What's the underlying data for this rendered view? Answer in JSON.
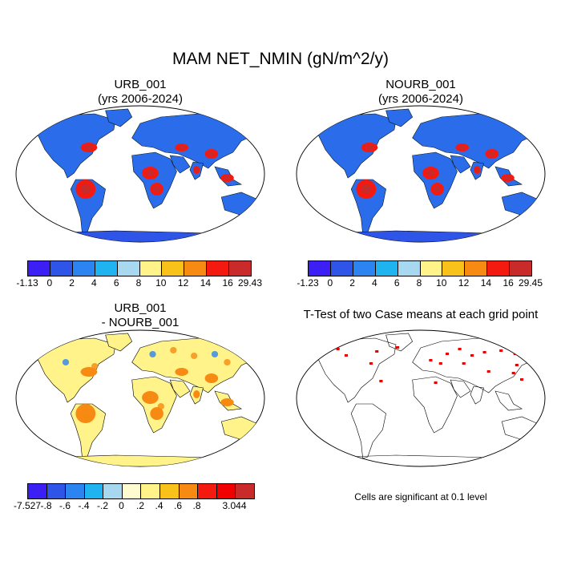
{
  "figure_title": "MAM NET_NMIN (gN/m^2/y)",
  "panels": [
    {
      "title_line1": "URB_001",
      "title_line2": "(yrs 2006-2024)",
      "colorbar": {
        "colors": [
          "#3b1ff5",
          "#2f55e8",
          "#2b84f0",
          "#1fb3f0",
          "#a8d8f0",
          "#fff38a",
          "#f9c21a",
          "#f68a12",
          "#f51a10",
          "#c92a2a"
        ],
        "labels": [
          "-1.13",
          "0",
          "2",
          "4",
          "6",
          "8",
          "10",
          "12",
          "14",
          "16",
          "29.43"
        ]
      }
    },
    {
      "title_line1": "NOURB_001",
      "title_line2": "(yrs 2006-2024)",
      "colorbar": {
        "colors": [
          "#3b1ff5",
          "#2f55e8",
          "#2b84f0",
          "#1fb3f0",
          "#a8d8f0",
          "#fff38a",
          "#f9c21a",
          "#f68a12",
          "#f51a10",
          "#c92a2a"
        ],
        "labels": [
          "-1.23",
          "0",
          "2",
          "4",
          "6",
          "8",
          "10",
          "12",
          "14",
          "16",
          "29.45"
        ]
      }
    },
    {
      "title_line1": "URB_001",
      "title_line2": "- NOURB_001",
      "colorbar": {
        "colors": [
          "#3b1ff5",
          "#2f55e8",
          "#2b84f0",
          "#1fb3f0",
          "#a8d8f0",
          "#fffbd0",
          "#fff38a",
          "#f9c21a",
          "#f68a12",
          "#f51a10",
          "#f00000",
          "#c92a2a"
        ],
        "labels": [
          "-7.527",
          "-.8",
          "-.6",
          "-.4",
          "-.2",
          "0",
          ".2",
          ".4",
          ".6",
          ".8",
          "",
          "3.044"
        ]
      }
    },
    {
      "title_line1": "T-Test of two Case means at each grid point",
      "note": "Cells are significant at 0.1 level"
    }
  ],
  "colors": {
    "ocean": "#ffffff",
    "coast": "#000000",
    "significant": "#e60000",
    "land_low": "#2f55e8",
    "land_mid": "#1fb3f0",
    "land_high": "#f51a10",
    "land_peak": "#c92a2a",
    "diff_land": "#fff38a",
    "diff_pos": "#f68a12",
    "diff_neg": "#2b84f0"
  }
}
